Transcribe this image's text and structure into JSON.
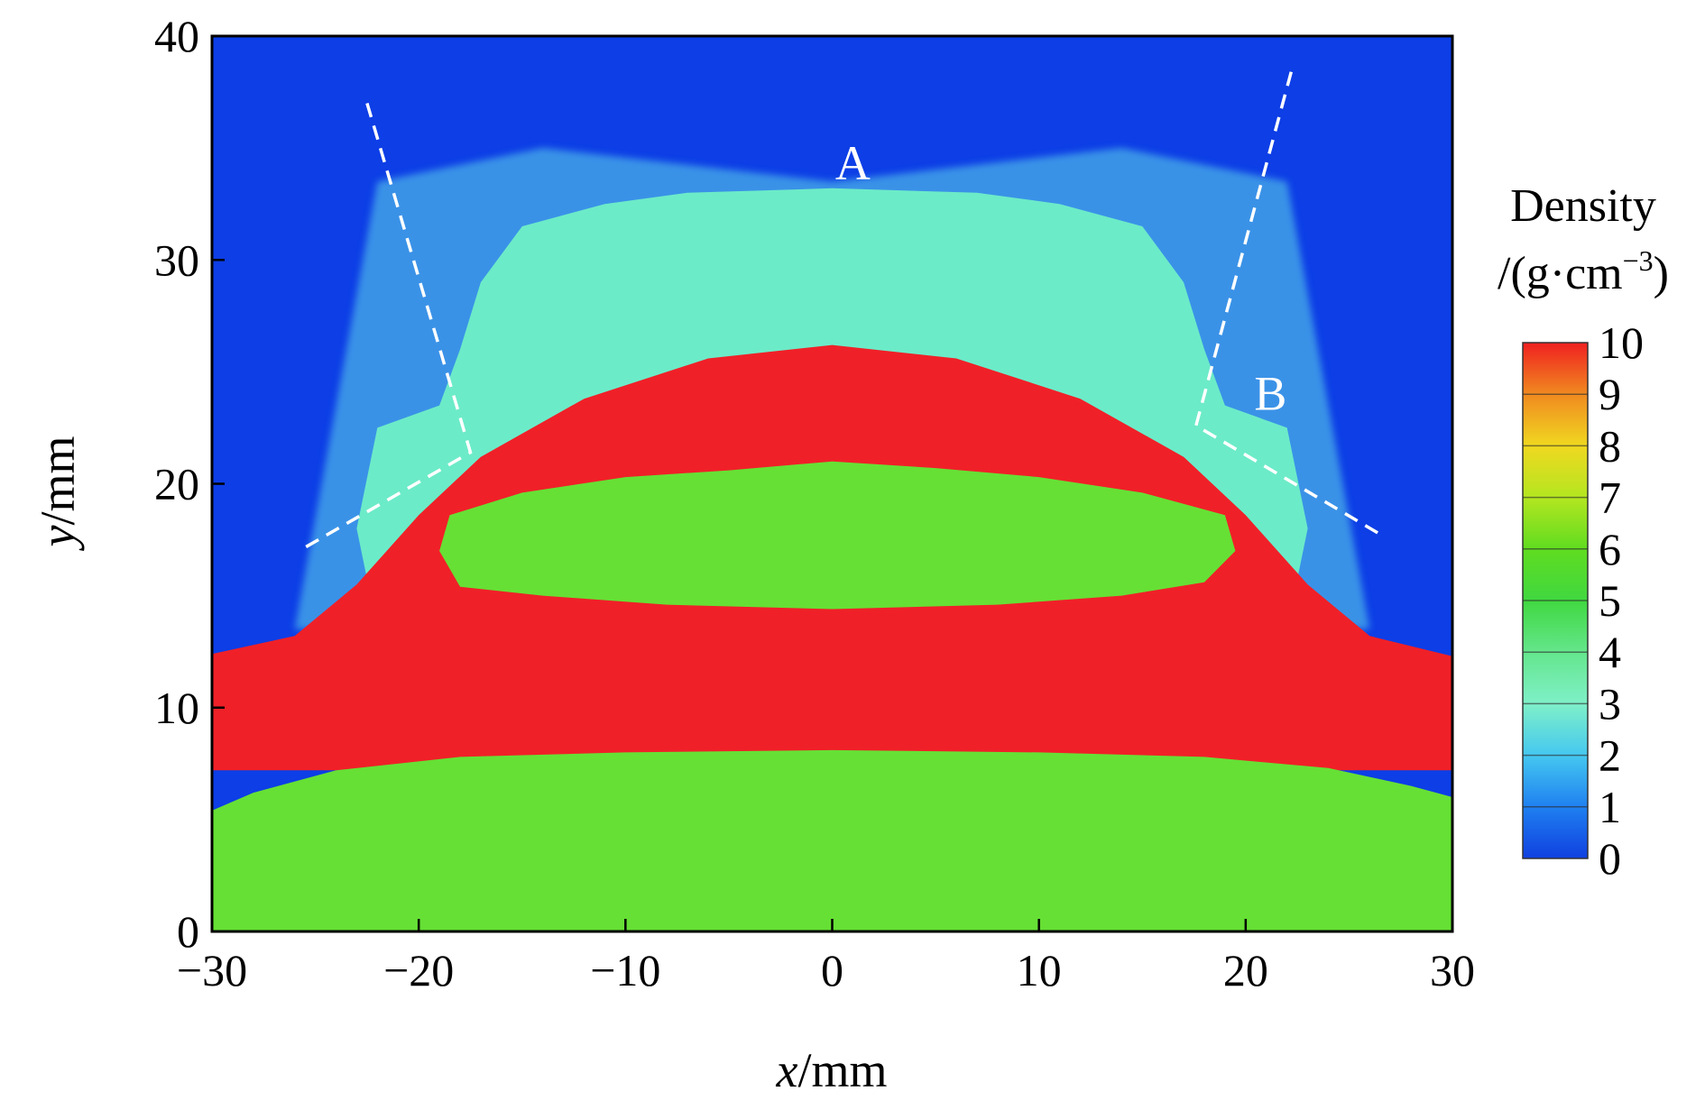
{
  "chart_data": {
    "type": "heatmap",
    "xlabel_italic": "x",
    "xlabel_unit": "/mm",
    "ylabel_italic": "y",
    "ylabel_unit": "/mm",
    "xlim": [
      -30,
      30
    ],
    "ylim": [
      0,
      40
    ],
    "x_ticks": [
      -30,
      -20,
      -10,
      0,
      10,
      20,
      30
    ],
    "x_tick_labels": [
      "−30",
      "−20",
      "−10",
      "0",
      "10",
      "20",
      "30"
    ],
    "y_ticks": [
      0,
      10,
      20,
      30,
      40
    ],
    "y_tick_labels": [
      "0",
      "10",
      "20",
      "30",
      "40"
    ],
    "grid": false,
    "colorbar": {
      "title_line1": "Density",
      "title_line2_prefix": "/(g·cm",
      "title_line2_exp": "−3",
      "title_line2_suffix": ")",
      "range": [
        0,
        10
      ],
      "levels": [
        0,
        1,
        2,
        3,
        4,
        5,
        6,
        7,
        8,
        9,
        10
      ],
      "level_labels": [
        "0",
        "1",
        "2",
        "3",
        "4",
        "5",
        "6",
        "7",
        "8",
        "9",
        "10"
      ],
      "colors": [
        "#1040e0",
        "#1f80f0",
        "#45c8f0",
        "#7ff0c8",
        "#64e68c",
        "#40d840",
        "#60dc20",
        "#b4e620",
        "#f0d820",
        "#f08a20",
        "#f02020"
      ],
      "placement": "right"
    },
    "regions": [
      {
        "name": "background",
        "density": 0,
        "color": "#0d3ee6"
      },
      {
        "name": "upper-plume",
        "density": 3,
        "color": "#6ff0c6",
        "points": [
          [
            -22,
            13.5
          ],
          [
            -23,
            18
          ],
          [
            -22,
            22.5
          ],
          [
            -19,
            23.5
          ],
          [
            -18,
            26
          ],
          [
            -17,
            29
          ],
          [
            -15,
            31.5
          ],
          [
            -11,
            32.5
          ],
          [
            -7,
            33
          ],
          [
            0,
            33.2
          ],
          [
            7,
            33
          ],
          [
            11,
            32.5
          ],
          [
            15,
            31.5
          ],
          [
            17,
            29
          ],
          [
            18,
            26
          ],
          [
            19,
            23.5
          ],
          [
            22,
            22.5
          ],
          [
            23,
            18
          ],
          [
            22,
            13.5
          ]
        ]
      },
      {
        "name": "plume-thin-edge",
        "density": 2,
        "color": "#5fd8e8",
        "points": [
          [
            -26,
            13.5
          ],
          [
            -22,
            33.5
          ],
          [
            -14,
            35
          ],
          [
            0,
            33.5
          ],
          [
            14,
            35
          ],
          [
            22,
            33.5
          ],
          [
            26,
            13.5
          ]
        ]
      },
      {
        "name": "upper-dense-cap",
        "density": 10,
        "color": "#f02028",
        "points": [
          [
            -30,
            12.4
          ],
          [
            -26,
            13.2
          ],
          [
            -23,
            15.5
          ],
          [
            -20,
            18.6
          ],
          [
            -17,
            21.2
          ],
          [
            -12,
            23.8
          ],
          [
            -6,
            25.6
          ],
          [
            0,
            26.2
          ],
          [
            6,
            25.6
          ],
          [
            12,
            23.8
          ],
          [
            17,
            21.2
          ],
          [
            20,
            18.6
          ],
          [
            23,
            15.5
          ],
          [
            26,
            13.2
          ],
          [
            30,
            12.3
          ],
          [
            30,
            7.2
          ],
          [
            -30,
            7.2
          ]
        ]
      },
      {
        "name": "central-lens",
        "density": 5,
        "color": "#66e035",
        "points": [
          [
            -18.5,
            18.6
          ],
          [
            -15,
            19.6
          ],
          [
            -10,
            20.3
          ],
          [
            -5,
            20.6
          ],
          [
            0,
            21.0
          ],
          [
            5,
            20.7
          ],
          [
            10,
            20.3
          ],
          [
            15,
            19.6
          ],
          [
            19,
            18.6
          ],
          [
            19.5,
            17.0
          ],
          [
            18,
            15.6
          ],
          [
            14,
            15.0
          ],
          [
            8,
            14.6
          ],
          [
            0,
            14.4
          ],
          [
            -8,
            14.6
          ],
          [
            -14,
            15.0
          ],
          [
            -18,
            15.4
          ],
          [
            -19,
            17.0
          ]
        ]
      },
      {
        "name": "bottom-layer",
        "density": 5,
        "color": "#66e035",
        "points": [
          [
            -30,
            0
          ],
          [
            -30,
            5.4
          ],
          [
            -28,
            6.2
          ],
          [
            -24,
            7.2
          ],
          [
            -18,
            7.8
          ],
          [
            -10,
            8.0
          ],
          [
            0,
            8.1
          ],
          [
            10,
            8.0
          ],
          [
            18,
            7.8
          ],
          [
            24,
            7.3
          ],
          [
            28,
            6.5
          ],
          [
            30,
            6.0
          ],
          [
            30,
            0
          ]
        ]
      }
    ],
    "guide_lines": [
      {
        "name": "left-guide",
        "points": [
          [
            -22.5,
            37
          ],
          [
            -17.5,
            21.4
          ],
          [
            -25.8,
            17.0
          ]
        ]
      },
      {
        "name": "right-guide",
        "points": [
          [
            22.2,
            38.4
          ],
          [
            17.6,
            22.6
          ],
          [
            26.4,
            17.8
          ]
        ]
      }
    ],
    "annotations": [
      {
        "text": "A",
        "x": 1.0,
        "y": 33.6
      },
      {
        "text": "B",
        "x": 21.2,
        "y": 23.3
      }
    ]
  }
}
